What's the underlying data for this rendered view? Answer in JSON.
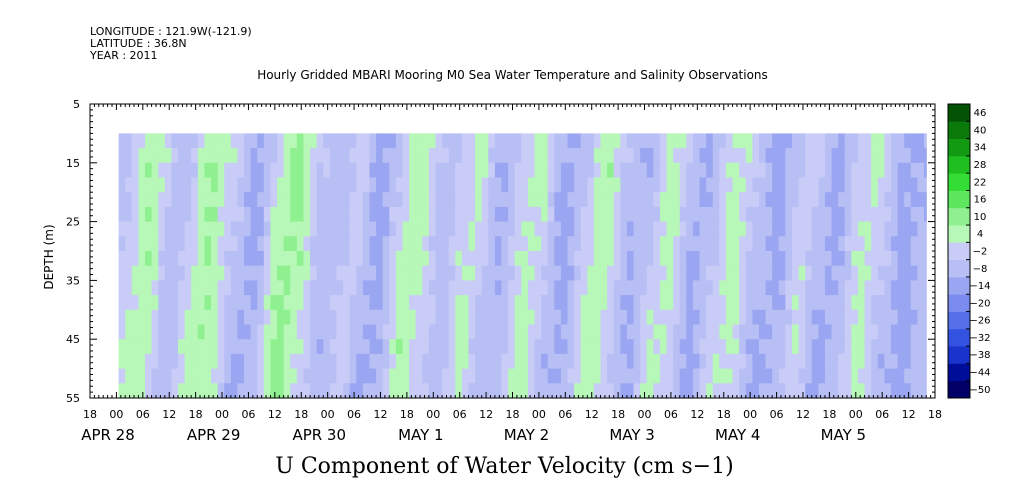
{
  "header": {
    "longitude": "LONGITUDE : 121.9W(-121.9)",
    "latitude": "LATITUDE : 36.8N",
    "year": "YEAR : 2011"
  },
  "chart_data": {
    "type": "heatmap",
    "title": "Hourly Gridded MBARI Mooring M0 Sea Water Temperature and Salinity Observations",
    "xlabel": "U Component of Water Velocity (cm s−1)",
    "ylabel": "DEPTH (m)",
    "ylim": [
      5,
      55
    ],
    "y_inverted": true,
    "y_ticks": [
      5,
      15,
      25,
      35,
      45,
      55
    ],
    "x_range_hours": [
      -6,
      186
    ],
    "x_hour_ticks": [
      "18",
      "00",
      "06",
      "12",
      "18",
      "00",
      "06",
      "12",
      "18",
      "00",
      "06",
      "12",
      "18",
      "00",
      "06",
      "12",
      "18",
      "00",
      "06",
      "12",
      "18",
      "00",
      "06",
      "12",
      "18",
      "00",
      "06",
      "12",
      "18",
      "00",
      "06",
      "12",
      "18"
    ],
    "x_date_labels": [
      "APR 28",
      "APR 29",
      "APR 30",
      "MAY  1",
      "MAY  2",
      "MAY  3",
      "MAY  4",
      "MAY  5"
    ],
    "data_extent": {
      "x_hours": [
        0.5,
        184
      ],
      "depth_m": [
        10,
        55
      ]
    },
    "colorbar": {
      "levels": [
        -50,
        -44,
        -38,
        -32,
        -26,
        -20,
        -14,
        -8,
        -2,
        4,
        10,
        16,
        22,
        28,
        34,
        40,
        46
      ],
      "tick_labels": [
        "46",
        "40",
        "34",
        "28",
        "22",
        "16",
        "10",
        "4",
        "−2",
        "−8",
        "−14",
        "−20",
        "−26",
        "−32",
        "−38",
        "−44",
        "−50"
      ],
      "colors": [
        "#000066",
        "#000d99",
        "#1a33cc",
        "#3352e0",
        "#5570e8",
        "#7a8cf0",
        "#9aa6f2",
        "#b8bff5",
        "#c9ccf7",
        "#b7f7b7",
        "#8ff08f",
        "#5ee65e",
        "#33dd33",
        "#1fbf1f",
        "#129a12",
        "#0a7a0a",
        "#045204"
      ]
    },
    "time_profile": [
      {
        "x": 0.5,
        "v": -4
      },
      {
        "x": 3,
        "v": 2
      },
      {
        "x": 6,
        "v": 8
      },
      {
        "x": 9,
        "v": 6
      },
      {
        "x": 12,
        "v": -6
      },
      {
        "x": 15,
        "v": -4
      },
      {
        "x": 18,
        "v": 6
      },
      {
        "x": 21,
        "v": 10
      },
      {
        "x": 24,
        "v": 4
      },
      {
        "x": 27,
        "v": -3
      },
      {
        "x": 30,
        "v": -10
      },
      {
        "x": 33,
        "v": -6
      },
      {
        "x": 36,
        "v": 6
      },
      {
        "x": 39,
        "v": 12
      },
      {
        "x": 42,
        "v": 8
      },
      {
        "x": 45,
        "v": -2
      },
      {
        "x": 48,
        "v": -6
      },
      {
        "x": 51,
        "v": -4
      },
      {
        "x": 54,
        "v": 2
      },
      {
        "x": 57,
        "v": -8
      },
      {
        "x": 60,
        "v": -10
      },
      {
        "x": 63,
        "v": -2
      },
      {
        "x": 66,
        "v": 8
      },
      {
        "x": 69,
        "v": 6
      },
      {
        "x": 72,
        "v": -2
      },
      {
        "x": 75,
        "v": -6
      },
      {
        "x": 78,
        "v": 2
      },
      {
        "x": 81,
        "v": 6
      },
      {
        "x": 84,
        "v": -4
      },
      {
        "x": 87,
        "v": -8
      },
      {
        "x": 90,
        "v": -2
      },
      {
        "x": 93,
        "v": 6
      },
      {
        "x": 96,
        "v": 4
      },
      {
        "x": 99,
        "v": -6
      },
      {
        "x": 102,
        "v": -10
      },
      {
        "x": 105,
        "v": -4
      },
      {
        "x": 108,
        "v": 6
      },
      {
        "x": 111,
        "v": 8
      },
      {
        "x": 114,
        "v": -2
      },
      {
        "x": 117,
        "v": -8
      },
      {
        "x": 120,
        "v": -6
      },
      {
        "x": 123,
        "v": 4
      },
      {
        "x": 126,
        "v": 6
      },
      {
        "x": 129,
        "v": -4
      },
      {
        "x": 132,
        "v": -10
      },
      {
        "x": 135,
        "v": -4
      },
      {
        "x": 138,
        "v": 4
      },
      {
        "x": 141,
        "v": 6
      },
      {
        "x": 144,
        "v": -2
      },
      {
        "x": 147,
        "v": -8
      },
      {
        "x": 150,
        "v": -10
      },
      {
        "x": 153,
        "v": -4
      },
      {
        "x": 156,
        "v": 4
      },
      {
        "x": 159,
        "v": -4
      },
      {
        "x": 162,
        "v": -10
      },
      {
        "x": 165,
        "v": -6
      },
      {
        "x": 168,
        "v": 2
      },
      {
        "x": 171,
        "v": 6
      },
      {
        "x": 174,
        "v": -2
      },
      {
        "x": 177,
        "v": -8
      },
      {
        "x": 180,
        "v": -10
      },
      {
        "x": 184,
        "v": -6
      }
    ]
  }
}
